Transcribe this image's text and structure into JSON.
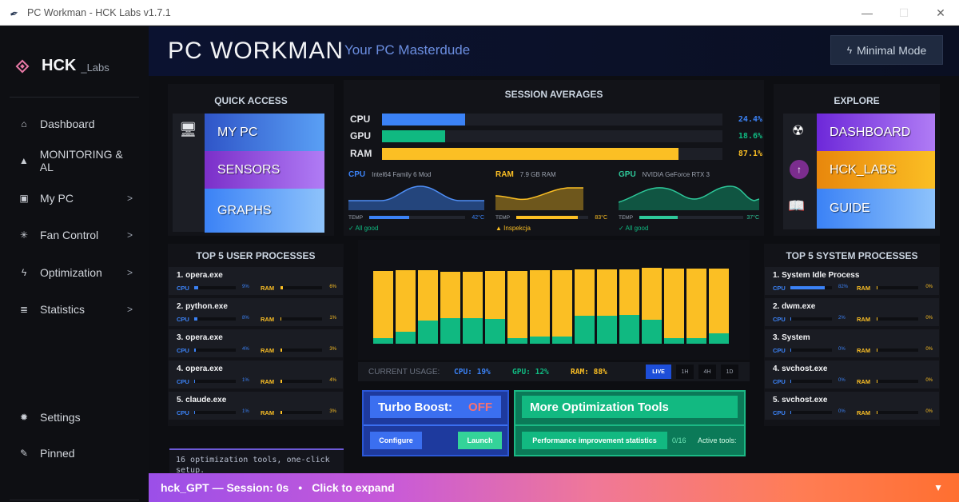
{
  "window": {
    "title": "PC Workman - HCK Labs v1.7.1",
    "controls": {
      "minimize": "—",
      "maximize": "☐",
      "close": "✕"
    }
  },
  "sidebar": {
    "brand": {
      "name": "HCK",
      "suffix": "_Labs"
    },
    "items": [
      {
        "label": "Dashboard",
        "icon": "home-icon",
        "glyph": "⌂",
        "chevron": ""
      },
      {
        "label": "MONITORING & AL",
        "icon": "warning-icon",
        "glyph": "▲",
        "chevron": ""
      },
      {
        "label": "My PC",
        "icon": "chip-icon",
        "glyph": "▣",
        "chevron": ">"
      },
      {
        "label": "Fan Control",
        "icon": "fan-icon",
        "glyph": "✳",
        "chevron": ">"
      },
      {
        "label": "Optimization",
        "icon": "bolt-icon",
        "glyph": "ϟ",
        "chevron": ">"
      },
      {
        "label": "Statistics",
        "icon": "list-icon",
        "glyph": "≣",
        "chevron": ">"
      }
    ],
    "bottom": [
      {
        "label": "Settings",
        "icon": "gear-icon",
        "glyph": "✹"
      },
      {
        "label": "Pinned",
        "icon": "pin-icon",
        "glyph": "✎"
      }
    ]
  },
  "header": {
    "title": "PC WORKMAN",
    "tagline": "Your PC Masterdude",
    "minimal_mode": "Minimal Mode"
  },
  "quick_access": {
    "heading": "QUICK ACCESS",
    "tiles": [
      {
        "label": "MY PC",
        "colors": [
          "#2f55c8",
          "#5aa0f5"
        ]
      },
      {
        "label": "SENSORS",
        "colors": [
          "#7b2fc9",
          "#b07cf5"
        ]
      },
      {
        "label": "GRAPHS",
        "colors": [
          "#3b82f6",
          "#8ec3fb"
        ]
      }
    ]
  },
  "session_averages": {
    "heading": "SESSION AVERAGES",
    "rows": [
      {
        "label": "CPU",
        "value": "24.4%",
        "display": "24.4%",
        "pct": 24.4,
        "color": "#3b82f6"
      },
      {
        "label": "GPU",
        "value": "18.6%",
        "display": "18.6%",
        "pct": 18.6,
        "color": "#10b981"
      },
      {
        "label": "RAM",
        "value": "87.1%",
        "display": "87.1%",
        "pct": 87.1,
        "color": "#fbbf24"
      }
    ]
  },
  "mini_monitors": [
    {
      "label": "CPU",
      "device": "Intel64 Family 6 Mod",
      "temp_label": "TEMP",
      "temp": "42°C",
      "temp_pct": 55,
      "status": "✓ All good",
      "color": "#3b82f6",
      "status_color": "#10b981"
    },
    {
      "label": "RAM",
      "device": "7.9 GB RAM",
      "temp_label": "TEMP",
      "temp": "83°C",
      "temp_pct": 85,
      "status": "▲ Inspekcja",
      "color": "#fbbf24",
      "status_color": "#fbbf24"
    },
    {
      "label": "GPU",
      "device": "NVIDIA GeForce RTX 3",
      "temp_label": "TEMP",
      "temp": "37°C",
      "temp_pct": 48,
      "status": "✓ All good",
      "color": "#2ec89a",
      "status_color": "#10b981"
    }
  ],
  "explore": {
    "heading": "EXPLORE",
    "tiles": [
      {
        "label": "DASHBOARD",
        "icon": "radiation-icon",
        "glyph": "☢",
        "colors": [
          "#6d28d9",
          "#b07cf5"
        ]
      },
      {
        "label": "HCK_LABS",
        "icon": "upload-icon",
        "glyph": "↑",
        "colors": [
          "#e8870c",
          "#fbbf24"
        ]
      },
      {
        "label": "GUIDE",
        "icon": "book-icon",
        "glyph": "📖",
        "colors": [
          "#3b82f6",
          "#8ec3fb"
        ]
      }
    ]
  },
  "user_processes": {
    "heading": "TOP 5 USER PROCESSES",
    "items": [
      {
        "name": "1. opera.exe",
        "cpu": "9%",
        "cpu_pct": 9,
        "ram": "6%",
        "ram_pct": 6
      },
      {
        "name": "2. python.exe",
        "cpu": "8%",
        "cpu_pct": 8,
        "ram": "1%",
        "ram_pct": 1
      },
      {
        "name": "3. opera.exe",
        "cpu": "4%",
        "cpu_pct": 4,
        "ram": "3%",
        "ram_pct": 3
      },
      {
        "name": "4. opera.exe",
        "cpu": "1%",
        "cpu_pct": 1,
        "ram": "4%",
        "ram_pct": 4
      },
      {
        "name": "5. claude.exe",
        "cpu": "1%",
        "cpu_pct": 1,
        "ram": "3%",
        "ram_pct": 3
      }
    ]
  },
  "system_processes": {
    "heading": "TOP 5 SYSTEM PROCESSES",
    "items": [
      {
        "name": "1. System Idle Process",
        "cpu": "82%",
        "cpu_pct": 82,
        "ram": "0%",
        "ram_pct": 1
      },
      {
        "name": "2. dwm.exe",
        "cpu": "2%",
        "cpu_pct": 2,
        "ram": "0%",
        "ram_pct": 1
      },
      {
        "name": "3. System",
        "cpu": "0%",
        "cpu_pct": 1,
        "ram": "0%",
        "ram_pct": 1
      },
      {
        "name": "4. svchost.exe",
        "cpu": "0%",
        "cpu_pct": 1,
        "ram": "0%",
        "ram_pct": 1
      },
      {
        "name": "5. svchost.exe",
        "cpu": "0%",
        "cpu_pct": 1,
        "ram": "0%",
        "ram_pct": 1
      }
    ]
  },
  "usage_chart": {
    "bars": [
      {
        "gpu": 7,
        "ram": 91
      },
      {
        "gpu": 15,
        "ram": 92
      },
      {
        "gpu": 29,
        "ram": 92
      },
      {
        "gpu": 32,
        "ram": 90
      },
      {
        "gpu": 32,
        "ram": 90
      },
      {
        "gpu": 31,
        "ram": 91
      },
      {
        "gpu": 7,
        "ram": 91
      },
      {
        "gpu": 9,
        "ram": 92
      },
      {
        "gpu": 9,
        "ram": 92
      },
      {
        "gpu": 35,
        "ram": 93
      },
      {
        "gpu": 35,
        "ram": 93
      },
      {
        "gpu": 36,
        "ram": 93
      },
      {
        "gpu": 30,
        "ram": 95
      },
      {
        "gpu": 7,
        "ram": 94
      },
      {
        "gpu": 7,
        "ram": 94
      },
      {
        "gpu": 13,
        "ram": 94
      }
    ],
    "colors": {
      "gpu": "#10b981",
      "ram": "#fbbf24"
    }
  },
  "current_usage": {
    "label": "CURRENT USAGE:",
    "cpu": "CPU: 19%",
    "gpu": "GPU: 12%",
    "ram": "RAM: 88%",
    "ranges": [
      "LIVE",
      "1H",
      "4H",
      "1D"
    ],
    "active_range": "LIVE"
  },
  "turbo_boost": {
    "label": "Turbo Boost:",
    "state": "OFF",
    "configure": "Configure",
    "launch": "Launch"
  },
  "more_tools": {
    "title": "More Optimization Tools",
    "stats_button": "Performance improvement statistics",
    "count": "0/16",
    "active_label": "Active tools:"
  },
  "info_text": "16 optimization tools, one-click setup.",
  "hck_gpt": {
    "name": "hck_GPT — Session: 0s",
    "separator": "•",
    "action": "Click to expand",
    "arrow": "▼"
  }
}
